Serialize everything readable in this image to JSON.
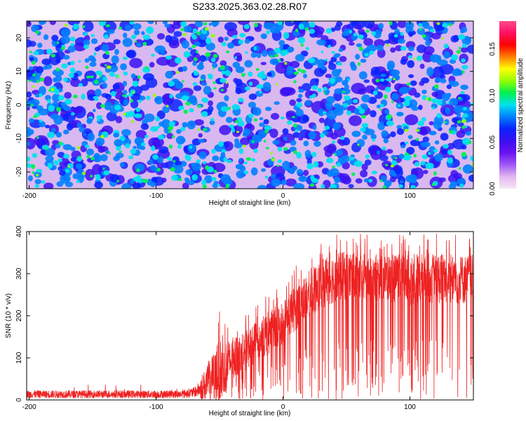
{
  "title": "S233.2025.363.02.28.R07",
  "chart_data": [
    {
      "type": "heatmap",
      "xlabel": "Height of straight line (km)",
      "ylabel": "Frequency (Hz)",
      "xlim": [
        -202,
        150
      ],
      "ylim": [
        -25,
        25
      ],
      "x_ticks": [
        -200,
        -100,
        0,
        100
      ],
      "y_ticks": [
        -20,
        -10,
        0,
        10,
        20
      ],
      "colorbar": {
        "label": "Normalized spectral amplitude",
        "range": [
          0.0,
          0.18
        ],
        "ticks": [
          "0.00",
          "0.05",
          "0.10",
          "0.15"
        ],
        "colors": [
          "#f4e8f4",
          "#e3b7ef",
          "#a05af5",
          "#6a13f0",
          "#3a10f2",
          "#0a22ff",
          "#0080ff",
          "#00e0ee",
          "#00f050",
          "#90ff00",
          "#ffff00",
          "#ff8000",
          "#ff0000",
          "#ff1060",
          "#ff4a8c"
        ]
      },
      "description": "Speckled noise amplitude field, mostly 0.02–0.09 with scattered peaks up to ~0.14"
    },
    {
      "type": "line",
      "xlabel": "Height of straight line (km)",
      "ylabel": "SNR (10 * v/v)",
      "xlim": [
        -202,
        150
      ],
      "ylim": [
        0,
        400
      ],
      "x_ticks": [
        -200,
        -100,
        0,
        100
      ],
      "y_ticks": [
        0,
        100,
        200,
        300,
        400
      ],
      "series": [
        {
          "name": "SNR",
          "color": "#ee2222",
          "envelope_x": [
            -202,
            -80,
            -70,
            -60,
            -50,
            -40,
            -30,
            -20,
            -10,
            0,
            10,
            20,
            30,
            40,
            50,
            60,
            80,
            100,
            120,
            140,
            150
          ],
          "envelope_mean": [
            15,
            15,
            20,
            40,
            70,
            95,
            115,
            140,
            160,
            185,
            220,
            250,
            275,
            290,
            295,
            290,
            290,
            285,
            290,
            285,
            290
          ],
          "envelope_max": [
            35,
            35,
            50,
            110,
            210,
            180,
            200,
            225,
            260,
            280,
            320,
            350,
            380,
            400,
            400,
            395,
            390,
            395,
            400,
            395,
            390
          ]
        }
      ]
    }
  ]
}
